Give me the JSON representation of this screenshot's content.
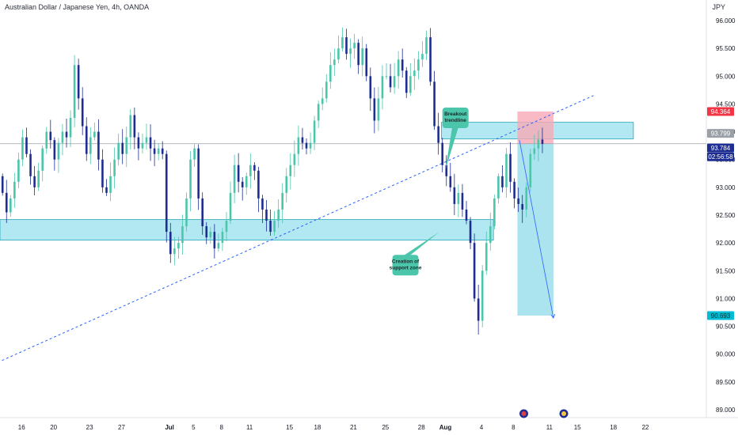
{
  "header": {
    "title": "Australian Dollar / Japanese Yen, 4h, OANDA",
    "currency": "JPY"
  },
  "chart_data": {
    "type": "candlestick",
    "y_axis": {
      "range": [
        88.9,
        96.1
      ],
      "ticks": [
        "96.000",
        "95.500",
        "95.000",
        "94.500",
        "94.000",
        "93.500",
        "93.000",
        "92.500",
        "92.000",
        "91.500",
        "91.000",
        "90.500",
        "90.000",
        "89.500",
        "89.000"
      ],
      "tick_values": [
        96.0,
        95.5,
        95.0,
        94.5,
        94.0,
        93.5,
        93.0,
        92.5,
        92.0,
        91.5,
        91.0,
        90.5,
        90.0,
        89.5,
        89.0
      ]
    },
    "x_axis": {
      "ticks": [
        {
          "label": "16",
          "i": 5
        },
        {
          "label": "20",
          "i": 13
        },
        {
          "label": "23",
          "i": 22
        },
        {
          "label": "27",
          "i": 30
        },
        {
          "label": "Jul",
          "i": 42
        },
        {
          "label": "5",
          "i": 48
        },
        {
          "label": "8",
          "i": 55
        },
        {
          "label": "11",
          "i": 62
        },
        {
          "label": "15",
          "i": 72
        },
        {
          "label": "18",
          "i": 79
        },
        {
          "label": "21",
          "i": 88
        },
        {
          "label": "25",
          "i": 96
        },
        {
          "label": "28",
          "i": 105
        },
        {
          "label": "Aug",
          "i": 111
        },
        {
          "label": "4",
          "i": 120
        },
        {
          "label": "8",
          "i": 128
        },
        {
          "label": "11",
          "i": 137
        },
        {
          "label": "15",
          "i": 144
        },
        {
          "label": "18",
          "i": 153
        },
        {
          "label": "22",
          "i": 161
        }
      ]
    },
    "candle_colors": {
      "up": "#4cc6ab",
      "down": "#1e2d91"
    },
    "price_path": [
      93.2,
      92.9,
      92.55,
      92.8,
      93.1,
      93.5,
      93.9,
      93.6,
      93.2,
      93.0,
      93.3,
      93.7,
      94.0,
      93.85,
      93.5,
      93.8,
      94.0,
      93.9,
      94.25,
      95.2,
      94.6,
      94.1,
      93.6,
      93.9,
      94.0,
      93.5,
      93.0,
      92.9,
      93.2,
      93.5,
      93.8,
      93.6,
      93.9,
      94.3,
      93.9,
      93.7,
      93.8,
      93.9,
      93.7,
      93.6,
      93.7,
      93.6,
      92.2,
      91.8,
      91.9,
      92.0,
      92.3,
      92.8,
      93.5,
      93.7,
      92.8,
      92.3,
      92.1,
      92.2,
      91.9,
      92.0,
      92.2,
      92.4,
      92.9,
      93.4,
      93.1,
      93.0,
      93.2,
      93.4,
      93.3,
      92.8,
      92.6,
      92.4,
      92.2,
      92.4,
      92.6,
      92.9,
      93.2,
      93.4,
      93.6,
      93.9,
      93.8,
      93.7,
      93.8,
      94.2,
      94.5,
      94.6,
      94.9,
      95.2,
      95.3,
      95.5,
      95.7,
      95.4,
      95.5,
      95.6,
      95.2,
      95.5,
      95.0,
      94.6,
      94.2,
      94.6,
      95.0,
      95.0,
      94.8,
      95.0,
      95.3,
      95.1,
      94.7,
      95.0,
      95.1,
      95.3,
      95.4,
      95.7,
      94.9,
      94.1,
      93.8,
      93.4,
      93.2,
      93.0,
      92.7,
      92.9,
      92.6,
      92.4,
      92.0,
      91.0,
      90.6,
      91.5,
      92.0,
      92.3,
      92.8,
      93.2,
      93.0,
      93.6,
      93.1,
      92.8,
      92.7,
      92.6,
      93.0,
      93.6,
      93.7,
      93.86,
      93.78
    ],
    "zones": [
      {
        "name": "support-zone",
        "y_top": 92.42,
        "y_bottom": 92.05,
        "x_start": -1,
        "x_end": 123,
        "color": "#7fd9e8"
      },
      {
        "name": "resistance-zone",
        "y_top": 94.17,
        "y_bottom": 93.87,
        "x_start": 110,
        "x_end": 158,
        "color": "#7fd9e8"
      }
    ],
    "trendline": {
      "start": {
        "i": -1,
        "y": 89.85
      },
      "end": {
        "i": 148,
        "y": 94.65
      },
      "color": "#2962ff"
    },
    "horizontal_line": {
      "y": 93.784,
      "color": "#9aa0a6"
    },
    "position": {
      "entry": 93.784,
      "stop": 94.364,
      "target": 90.693,
      "x_start": 129,
      "x_end": 138,
      "stop_color": "#f7a9b6",
      "target_color": "#8fd9ea"
    },
    "projection_arrow": {
      "from": {
        "i": 129.5,
        "y": 93.85
      },
      "to": {
        "i": 138,
        "y": 90.65
      },
      "color": "#2962ff"
    },
    "annotations": [
      {
        "text_lines": [
          "Breakout",
          "trendline"
        ],
        "i": 113.5,
        "y": 94.25,
        "pointer_to": {
          "i": 111,
          "y": 93.32
        }
      },
      {
        "text_lines": [
          "Creation of",
          "support zone"
        ],
        "i": 101,
        "y": 91.6,
        "pointer_to": {
          "i": 109.5,
          "y": 92.2
        }
      }
    ],
    "price_labels": [
      {
        "text": "94.364",
        "y": 94.364,
        "bg": "#f23645",
        "fg": "#ffffff"
      },
      {
        "text": "93.799",
        "y": 93.97,
        "bg": "#9aa0a6",
        "fg": "#ffffff"
      },
      {
        "text": "93.784",
        "y": 93.71,
        "bg": "#1e2d91",
        "fg": "#ffffff"
      },
      {
        "text": "02:56:58",
        "y": 93.55,
        "bg": "#1e2d91",
        "fg": "#ffffff"
      },
      {
        "text": "90.693",
        "y": 90.693,
        "bg": "#00bcd4",
        "fg": "#0b2f2a"
      }
    ],
    "event_icons": [
      {
        "name": "au-flag-icon",
        "i": 130
      },
      {
        "name": "jp-flag-icon",
        "i": 140
      }
    ]
  }
}
